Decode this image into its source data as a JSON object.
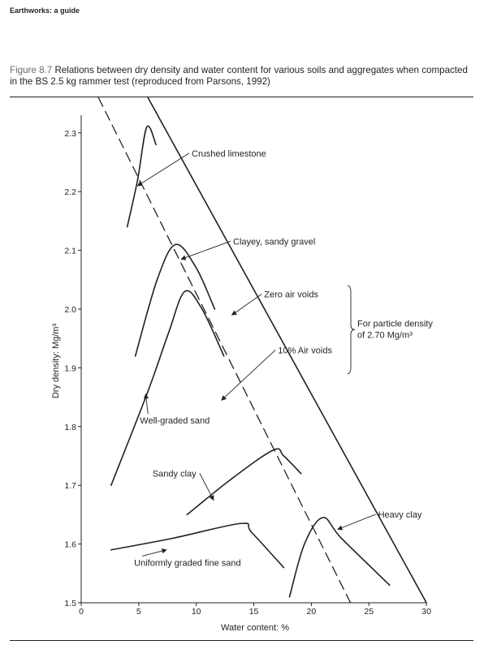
{
  "header": {
    "title": "Earthworks: a guide"
  },
  "caption": {
    "label": "Figure 8.7",
    "text": "Relations between dry density and water content for various soils and aggregates when compacted in the BS 2.5 kg rammer test (reproduced from Parsons, 1992)"
  },
  "chart_data": {
    "type": "line",
    "xlabel": "Water content: %",
    "ylabel": "Dry density: Mg/m³",
    "xlim": [
      0,
      30
    ],
    "ylim": [
      1.5,
      2.35
    ],
    "xticks": [
      "0",
      "5",
      "10",
      "15",
      "20",
      "25",
      "30"
    ],
    "yticks": [
      "1.5",
      "1.6",
      "1.7",
      "1.8",
      "1.9",
      "2.0",
      "2.1",
      "2.2",
      "2.3"
    ],
    "grid": false,
    "series": [
      {
        "name": "Crushed limestone",
        "style": "solid",
        "points": [
          [
            4.0,
            2.14
          ],
          [
            4.9,
            2.22
          ],
          [
            5.7,
            2.31
          ],
          [
            6.5,
            2.28
          ]
        ]
      },
      {
        "name": "Clayey, sandy gravel",
        "style": "solid",
        "points": [
          [
            4.7,
            1.92
          ],
          [
            6.6,
            2.05
          ],
          [
            8.2,
            2.11
          ],
          [
            10.0,
            2.07
          ],
          [
            11.6,
            2.0
          ]
        ]
      },
      {
        "name": "Well-graded sand",
        "style": "solid",
        "points": [
          [
            2.6,
            1.7
          ],
          [
            5.8,
            1.86
          ],
          [
            7.6,
            1.96
          ],
          [
            9.0,
            2.03
          ],
          [
            10.5,
            2.0
          ],
          [
            12.4,
            1.92
          ]
        ]
      },
      {
        "name": "Sandy clay",
        "style": "solid",
        "points": [
          [
            9.2,
            1.65
          ],
          [
            13.0,
            1.71
          ],
          [
            16.7,
            1.76
          ],
          [
            17.6,
            1.75
          ],
          [
            19.1,
            1.72
          ]
        ]
      },
      {
        "name": "Heavy clay",
        "style": "solid",
        "points": [
          [
            18.1,
            1.51
          ],
          [
            19.4,
            1.6
          ],
          [
            21.0,
            1.645
          ],
          [
            22.6,
            1.61
          ],
          [
            26.8,
            1.53
          ]
        ]
      },
      {
        "name": "Uniformly graded fine sand",
        "style": "solid",
        "points": [
          [
            2.6,
            1.59
          ],
          [
            8.0,
            1.61
          ],
          [
            13.9,
            1.635
          ],
          [
            14.8,
            1.62
          ],
          [
            17.6,
            1.56
          ]
        ]
      },
      {
        "name": "Zero air voids",
        "style": "solid",
        "points": [
          [
            5.8,
            2.36
          ],
          [
            30.0,
            1.5
          ]
        ]
      },
      {
        "name": "10% Air voids",
        "style": "dashed",
        "points": [
          [
            1.5,
            2.36
          ],
          [
            23.4,
            1.5
          ]
        ]
      }
    ],
    "annotations": [
      {
        "text": "Crushed limestone",
        "x": 9.6,
        "y": 2.26,
        "target": [
          4.9,
          2.21
        ]
      },
      {
        "text": "Clayey, sandy gravel",
        "x": 13.2,
        "y": 2.11,
        "target": [
          8.7,
          2.085
        ]
      },
      {
        "text": "Zero air voids",
        "x": 15.9,
        "y": 2.02,
        "target": [
          13.1,
          1.99
        ]
      },
      {
        "text": "10% Air voids",
        "x": 17.1,
        "y": 1.925,
        "target": [
          12.2,
          1.845
        ]
      },
      {
        "text": "Well-graded sand",
        "x": 5.1,
        "y": 1.805,
        "target": [
          5.6,
          1.855
        ]
      },
      {
        "text": "Sandy clay",
        "x": 6.2,
        "y": 1.715,
        "target": [
          11.5,
          1.675
        ]
      },
      {
        "text": "Heavy clay",
        "x": 25.8,
        "y": 1.645,
        "target": [
          22.3,
          1.625
        ]
      },
      {
        "text": "Uniformly graded fine sand",
        "x": 4.6,
        "y": 1.563,
        "target": [
          7.4,
          1.59
        ]
      }
    ],
    "bracket_note": {
      "line1": "For particle density",
      "line2": "of 2.70 Mg/m³",
      "y_range": [
        1.89,
        2.04
      ]
    }
  }
}
